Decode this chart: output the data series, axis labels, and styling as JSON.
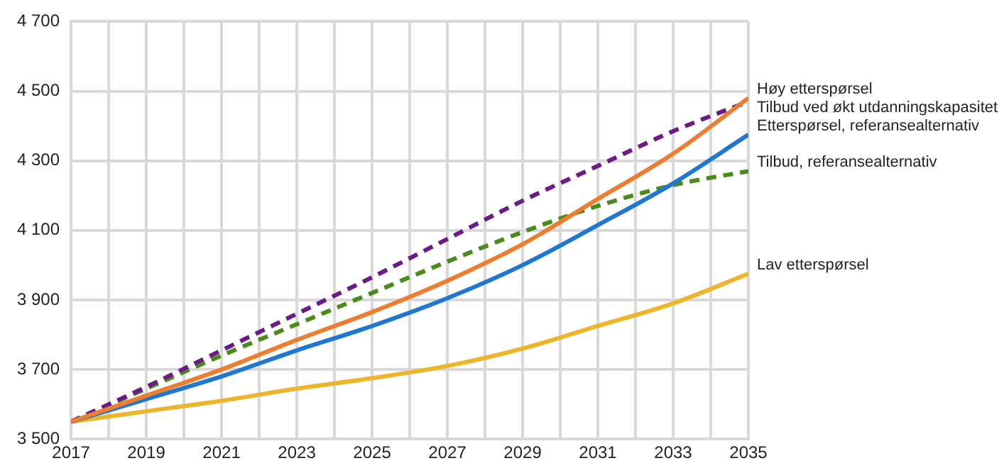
{
  "chart_data": {
    "type": "line",
    "x": [
      2017,
      2019,
      2021,
      2023,
      2025,
      2027,
      2029,
      2031,
      2033,
      2035
    ],
    "xlim": [
      2017,
      2035
    ],
    "xticks": [
      2017,
      {
        "value": 2018,
        "label": null
      },
      2019,
      {
        "value": 2020,
        "label": null
      },
      2021,
      {
        "value": 2022,
        "label": null
      },
      2023,
      {
        "value": 2024,
        "label": null
      },
      2025,
      {
        "value": 2026,
        "label": null
      },
      2027,
      {
        "value": 2028,
        "label": null
      },
      2029,
      {
        "value": 2030,
        "label": null
      },
      2031,
      {
        "value": 2032,
        "label": null
      },
      2033,
      {
        "value": 2034,
        "label": null
      },
      2035
    ],
    "ylim": [
      3500,
      4700
    ],
    "yticks": [
      {
        "value": 3500,
        "label": "3 500"
      },
      {
        "value": 3700,
        "label": "3 700"
      },
      {
        "value": 3900,
        "label": "3 900"
      },
      {
        "value": 4100,
        "label": "4 100"
      },
      {
        "value": 4300,
        "label": "4 300"
      },
      {
        "value": 4500,
        "label": "4 500"
      },
      {
        "value": 4700,
        "label": "4 700"
      }
    ],
    "grid": true,
    "legend": false,
    "marker": "none",
    "series": [
      {
        "name": "Høy etterspørsel",
        "color": "#ed7d31",
        "line_style": "solid",
        "values": [
          3550,
          3625,
          3700,
          3785,
          3865,
          3955,
          4060,
          4190,
          4320,
          4480
        ]
      },
      {
        "name": "Tilbud ved økt utdanningskapasitet",
        "color": "#6a1b85",
        "line_style": "dashed",
        "values": [
          3550,
          3650,
          3755,
          3860,
          3965,
          4075,
          4185,
          4285,
          4385,
          4470
        ]
      },
      {
        "name": "Etterspørsel, referansealternativ",
        "color": "#1f77d0",
        "line_style": "solid",
        "values": [
          3550,
          3615,
          3680,
          3755,
          3825,
          3905,
          4000,
          4115,
          4235,
          4375
        ]
      },
      {
        "name": "Tilbud, referansealternativ",
        "color": "#4a8c1c",
        "line_style": "dashed",
        "values": [
          3550,
          3645,
          3740,
          3830,
          3920,
          4010,
          4095,
          4170,
          4230,
          4270
        ]
      },
      {
        "name": "Lav etterspørsel",
        "color": "#ecb52a",
        "line_style": "solid",
        "values": [
          3550,
          3580,
          3610,
          3645,
          3675,
          3710,
          3760,
          3825,
          3890,
          3975
        ]
      }
    ]
  }
}
